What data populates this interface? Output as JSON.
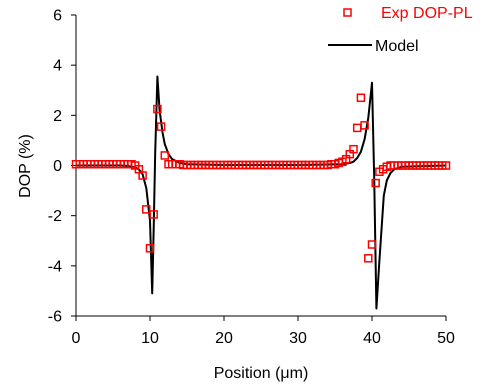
{
  "chart_data": {
    "type": "scatter",
    "xlabel": "Position (μm)",
    "ylabel": "DOP (%)",
    "xlim": [
      0,
      50
    ],
    "ylim": [
      -6,
      6
    ],
    "xticks": [
      0,
      10,
      20,
      30,
      40,
      50
    ],
    "yticks": [
      -6,
      -4,
      -2,
      0,
      2,
      4,
      6
    ],
    "grid": false,
    "legend_position": "top-right",
    "series": [
      {
        "name": "Exp DOP-PL",
        "kind": "markers",
        "marker": "open-square",
        "color": "#ff0000",
        "x": [
          0,
          0.5,
          1,
          1.5,
          2,
          2.5,
          3,
          3.5,
          4,
          4.5,
          5,
          5.5,
          6,
          6.5,
          7,
          7.5,
          8,
          8.5,
          9,
          9.5,
          10,
          10.5,
          11,
          11.5,
          12,
          12.5,
          13,
          13.5,
          14,
          14.5,
          15,
          15.5,
          16,
          16.5,
          17,
          17.5,
          18,
          18.5,
          19,
          19.5,
          20,
          20.5,
          21,
          21.5,
          22,
          22.5,
          23,
          23.5,
          24,
          24.5,
          25,
          25.5,
          26,
          26.5,
          27,
          27.5,
          28,
          28.5,
          29,
          29.5,
          30,
          30.5,
          31,
          31.5,
          32,
          32.5,
          33,
          33.5,
          34,
          34.5,
          35,
          35.5,
          36,
          36.5,
          37,
          37.5,
          38,
          38.5,
          39,
          39.5,
          40,
          40.5,
          41,
          41.5,
          42,
          42.5,
          43,
          43.5,
          44,
          44.5,
          45,
          45.5,
          46,
          46.5,
          47,
          47.5,
          48,
          48.5,
          49,
          49.5,
          50
        ],
        "y": [
          0.05,
          0.05,
          0.05,
          0.05,
          0.05,
          0.05,
          0.05,
          0.05,
          0.05,
          0.05,
          0.05,
          0.05,
          0.05,
          0.05,
          0.05,
          0.05,
          0,
          -0.15,
          -0.4,
          -1.75,
          -3.3,
          -1.95,
          2.25,
          1.55,
          0.4,
          0.05,
          0.05,
          0.05,
          0.05,
          0.02,
          0.02,
          0.02,
          0.02,
          0.02,
          0.02,
          0.02,
          0.02,
          0.02,
          0.02,
          0.02,
          0.02,
          0.02,
          0.02,
          0.02,
          0.02,
          0.02,
          0.02,
          0.02,
          0.02,
          0.02,
          0.02,
          0.02,
          0.02,
          0.02,
          0.02,
          0.02,
          0.02,
          0.02,
          0.02,
          0.02,
          0.02,
          0.02,
          0.02,
          0.02,
          0.02,
          0.02,
          0.02,
          0.02,
          0.02,
          0.05,
          0.05,
          0.1,
          0.15,
          0.25,
          0.45,
          0.65,
          1.5,
          2.7,
          1.6,
          -3.7,
          -3.15,
          -0.7,
          -0.25,
          -0.15,
          -0.05,
          0,
          0,
          0,
          0,
          0,
          0,
          0,
          0,
          0,
          0,
          0,
          0,
          0,
          0,
          0,
          0
        ]
      },
      {
        "name": "Model",
        "kind": "line",
        "color": "#000000",
        "x": [
          0,
          6,
          7,
          8,
          8.5,
          9,
          9.5,
          10,
          10.3,
          10.5,
          10.7,
          11,
          11.3,
          11.7,
          12,
          12.5,
          13,
          14,
          15,
          20,
          30,
          36,
          37,
          37.5,
          38,
          38.5,
          39,
          39.5,
          40,
          40.3,
          40.6,
          41,
          41.3,
          41.6,
          42,
          42.5,
          43,
          44,
          50
        ],
        "y": [
          0,
          0,
          -0.02,
          -0.08,
          -0.15,
          -0.35,
          -0.9,
          -2.2,
          -5.1,
          -2.5,
          0.5,
          3.55,
          2.2,
          1.3,
          0.85,
          0.45,
          0.25,
          0.1,
          0.05,
          0.02,
          0.02,
          0.05,
          0.1,
          0.15,
          0.3,
          0.55,
          1.05,
          1.9,
          3.3,
          -0.5,
          -5.7,
          -3.8,
          -2.5,
          -1.2,
          -0.6,
          -0.3,
          -0.15,
          -0.05,
          0
        ]
      }
    ]
  }
}
